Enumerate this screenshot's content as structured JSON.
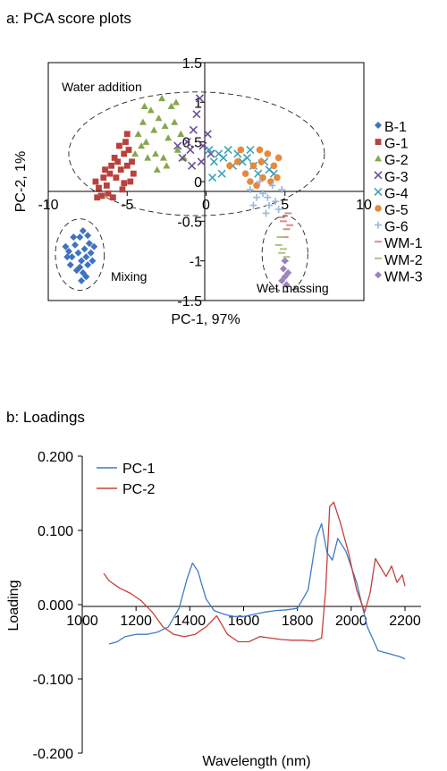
{
  "chart_data": [
    {
      "type": "scatter",
      "title": "a: PCA score plots",
      "xlabel": "PC-1, 97%",
      "ylabel": "PC-2, 1%",
      "xlim": [
        -10,
        10
      ],
      "ylim": [
        -1.5,
        1.5
      ],
      "x_ticks": [
        "-10",
        "-5",
        "0",
        "5",
        "10"
      ],
      "y_ticks": [
        "1.5",
        "1",
        "0.5",
        "0",
        "-0.5",
        "-1",
        "-1.5"
      ],
      "legend_position": "right",
      "annotations": [
        "Water addition",
        "Mixing",
        "Wet massing"
      ],
      "series": [
        {
          "name": "B-1",
          "color": "#3f73c0",
          "marker": "diamond",
          "points": [
            [
              -8.9,
              -0.82
            ],
            [
              -8.7,
              -0.88
            ],
            [
              -8.5,
              -0.95
            ],
            [
              -8.3,
              -0.8
            ],
            [
              -8.1,
              -0.9
            ],
            [
              -7.9,
              -1.0
            ],
            [
              -8.6,
              -1.05
            ],
            [
              -8.2,
              -1.12
            ],
            [
              -7.8,
              -1.15
            ],
            [
              -8.0,
              -0.7
            ],
            [
              -7.7,
              -0.85
            ],
            [
              -7.6,
              -0.95
            ],
            [
              -7.5,
              -1.05
            ],
            [
              -7.9,
              -1.25
            ],
            [
              -7.6,
              -1.2
            ],
            [
              -7.4,
              -0.78
            ],
            [
              -7.3,
              -0.9
            ],
            [
              -7.8,
              -0.62
            ],
            [
              -8.4,
              -0.7
            ],
            [
              -7.2,
              -1.0
            ],
            [
              -7.5,
              -0.68
            ],
            [
              -7.1,
              -0.82
            ],
            [
              -8.8,
              -0.95
            ],
            [
              -8.0,
              -1.08
            ]
          ]
        },
        {
          "name": "G-1",
          "color": "#b8423e",
          "marker": "square",
          "points": [
            [
              -7.0,
              0.0
            ],
            [
              -6.8,
              -0.08
            ],
            [
              -6.5,
              0.05
            ],
            [
              -6.3,
              -0.05
            ],
            [
              -6.1,
              0.1
            ],
            [
              -6.0,
              0.2
            ],
            [
              -5.8,
              0.3
            ],
            [
              -5.6,
              0.25
            ],
            [
              -5.4,
              0.15
            ],
            [
              -5.2,
              0.35
            ],
            [
              -5.0,
              0.2
            ],
            [
              -4.8,
              0.0
            ],
            [
              -5.1,
              0.5
            ],
            [
              -4.9,
              0.4
            ],
            [
              -5.5,
              0.45
            ],
            [
              -4.6,
              0.1
            ],
            [
              -6.6,
              -0.18
            ],
            [
              -6.2,
              -0.15
            ],
            [
              -5.9,
              -0.2
            ],
            [
              -5.3,
              -0.1
            ],
            [
              -5.7,
              0.05
            ],
            [
              -6.4,
              0.15
            ],
            [
              -4.7,
              0.25
            ],
            [
              -5.2,
              -0.02
            ],
            [
              -6.9,
              -0.2
            ],
            [
              -5.0,
              0.6
            ]
          ]
        },
        {
          "name": "G-2",
          "color": "#84a84a",
          "marker": "triangle",
          "points": [
            [
              -4.3,
              0.6
            ],
            [
              -4.0,
              0.75
            ],
            [
              -3.8,
              0.5
            ],
            [
              -3.5,
              0.9
            ],
            [
              -3.3,
              0.65
            ],
            [
              -3.0,
              0.8
            ],
            [
              -2.8,
              1.05
            ],
            [
              -2.6,
              0.7
            ],
            [
              -2.4,
              0.55
            ],
            [
              -2.2,
              0.95
            ],
            [
              -2.0,
              0.75
            ],
            [
              -1.8,
              0.4
            ],
            [
              -1.6,
              0.6
            ],
            [
              -3.7,
              0.3
            ],
            [
              -3.2,
              0.35
            ],
            [
              -2.7,
              0.3
            ],
            [
              -4.5,
              0.35
            ],
            [
              -1.9,
              1.0
            ],
            [
              -3.9,
              0.95
            ],
            [
              -2.5,
              0.2
            ],
            [
              -1.4,
              0.3
            ],
            [
              -3.1,
              0.15
            ],
            [
              -4.1,
              0.45
            ]
          ]
        },
        {
          "name": "G-3",
          "color": "#6a4f96",
          "marker": "x",
          "points": [
            [
              -1.5,
              0.3
            ],
            [
              -1.2,
              0.5
            ],
            [
              -1.0,
              0.4
            ],
            [
              -0.8,
              0.65
            ],
            [
              -0.6,
              0.85
            ],
            [
              -0.4,
              1.05
            ],
            [
              -0.2,
              0.45
            ],
            [
              0.1,
              0.6
            ],
            [
              -1.8,
              0.45
            ],
            [
              -0.3,
              0.25
            ],
            [
              0.3,
              0.35
            ],
            [
              -0.9,
              0.2
            ]
          ]
        },
        {
          "name": "G-4",
          "color": "#3ea2b7",
          "marker": "x",
          "points": [
            [
              0.2,
              0.4
            ],
            [
              0.5,
              0.25
            ],
            [
              0.8,
              0.35
            ],
            [
              1.1,
              0.3
            ],
            [
              1.4,
              0.4
            ],
            [
              1.7,
              0.2
            ],
            [
              2.0,
              0.35
            ],
            [
              2.3,
              0.25
            ],
            [
              2.6,
              0.3
            ],
            [
              3.0,
              0.2
            ],
            [
              3.3,
              0.1
            ],
            [
              3.7,
              0.25
            ],
            [
              4.0,
              0.15
            ],
            [
              4.3,
              0.1
            ],
            [
              1.0,
              0.1
            ],
            [
              0.4,
              0.05
            ],
            [
              2.8,
              0.4
            ]
          ]
        },
        {
          "name": "G-5",
          "color": "#e5893c",
          "marker": "circle",
          "points": [
            [
              1.5,
              0.2
            ],
            [
              2.0,
              0.25
            ],
            [
              2.5,
              0.1
            ],
            [
              3.0,
              0.2
            ],
            [
              3.5,
              0.25
            ],
            [
              3.9,
              0.35
            ],
            [
              4.3,
              0.2
            ],
            [
              4.6,
              0.3
            ],
            [
              2.8,
              0.0
            ],
            [
              3.2,
              -0.05
            ],
            [
              3.6,
              0.05
            ],
            [
              4.1,
              0.0
            ],
            [
              2.2,
              0.4
            ],
            [
              3.4,
              0.4
            ],
            [
              4.5,
              0.05
            ]
          ]
        },
        {
          "name": "G-6",
          "color": "#9ab8de",
          "marker": "plus",
          "points": [
            [
              2.8,
              -0.1
            ],
            [
              3.2,
              -0.2
            ],
            [
              3.6,
              -0.15
            ],
            [
              4.0,
              -0.3
            ],
            [
              4.4,
              -0.25
            ],
            [
              4.8,
              -0.1
            ],
            [
              3.0,
              -0.3
            ],
            [
              3.8,
              -0.4
            ],
            [
              4.2,
              -0.05
            ],
            [
              3.4,
              0.0
            ],
            [
              4.6,
              -0.35
            ],
            [
              3.9,
              -0.2
            ]
          ]
        },
        {
          "name": "WM-1",
          "color": "#d98e8c",
          "marker": "dash",
          "points": [
            [
              4.9,
              -0.5
            ],
            [
              5.1,
              -0.6
            ],
            [
              5.2,
              -0.4
            ],
            [
              5.0,
              -0.7
            ],
            [
              5.3,
              -0.55
            ],
            [
              4.8,
              -0.45
            ]
          ]
        },
        {
          "name": "WM-2",
          "color": "#a7c881",
          "marker": "dash",
          "points": [
            [
              4.6,
              -0.8
            ],
            [
              4.8,
              -0.9
            ],
            [
              5.0,
              -1.0
            ],
            [
              4.7,
              -0.7
            ],
            [
              4.9,
              -0.85
            ],
            [
              5.1,
              -0.95
            ]
          ]
        },
        {
          "name": "WM-3",
          "color": "#9d83bd",
          "marker": "diamond",
          "points": [
            [
              4.9,
              -1.1
            ],
            [
              5.0,
              -1.2
            ],
            [
              5.1,
              -1.3
            ],
            [
              4.8,
              -1.25
            ],
            [
              5.0,
              -1.0
            ],
            [
              5.2,
              -1.15
            ]
          ]
        }
      ]
    },
    {
      "type": "line",
      "title": "b: Loadings",
      "xlabel": "Wavelength (nm)",
      "ylabel": "Loading",
      "xlim": [
        1000,
        2300
      ],
      "ylim": [
        -0.2,
        0.2
      ],
      "x_ticks": [
        "1000",
        "1200",
        "1400",
        "1600",
        "1800",
        "2000",
        "2200"
      ],
      "y_ticks": [
        "0.200",
        "0.100",
        "0.000",
        "-0.100",
        "-0.200"
      ],
      "legend_position": "top-left",
      "series": [
        {
          "name": "PC-1",
          "color": "#3f7ac8",
          "x": [
            1100,
            1130,
            1160,
            1200,
            1240,
            1280,
            1320,
            1360,
            1390,
            1410,
            1430,
            1460,
            1490,
            1520,
            1560,
            1600,
            1640,
            1680,
            1720,
            1760,
            1800,
            1840,
            1870,
            1890,
            1910,
            1930,
            1950,
            1980,
            2020,
            2060,
            2100,
            2140,
            2180,
            2200
          ],
          "y": [
            -0.053,
            -0.05,
            -0.043,
            -0.04,
            -0.04,
            -0.037,
            -0.03,
            -0.005,
            0.035,
            0.056,
            0.045,
            0.008,
            -0.008,
            -0.012,
            -0.016,
            -0.016,
            -0.013,
            -0.01,
            -0.008,
            -0.007,
            -0.005,
            0.02,
            0.09,
            0.109,
            0.07,
            0.06,
            0.089,
            0.072,
            0.03,
            -0.03,
            -0.062,
            -0.066,
            -0.07,
            -0.073
          ]
        },
        {
          "name": "PC-2",
          "color": "#c6403c",
          "x": [
            1080,
            1100,
            1140,
            1180,
            1220,
            1260,
            1300,
            1340,
            1380,
            1420,
            1460,
            1500,
            1540,
            1580,
            1620,
            1660,
            1700,
            1740,
            1780,
            1820,
            1860,
            1890,
            1905,
            1920,
            1935,
            1960,
            1990,
            2020,
            2050,
            2070,
            2090,
            2110,
            2130,
            2150,
            2170,
            2190,
            2200
          ],
          "y": [
            0.042,
            0.032,
            0.022,
            0.015,
            0.005,
            -0.01,
            -0.03,
            -0.04,
            -0.043,
            -0.04,
            -0.03,
            -0.015,
            -0.04,
            -0.05,
            -0.05,
            -0.043,
            -0.045,
            -0.047,
            -0.048,
            -0.048,
            -0.049,
            -0.045,
            0.02,
            0.132,
            0.138,
            0.11,
            0.07,
            0.02,
            -0.01,
            0.015,
            0.062,
            0.05,
            0.038,
            0.052,
            0.03,
            0.04,
            0.025
          ]
        }
      ]
    }
  ]
}
